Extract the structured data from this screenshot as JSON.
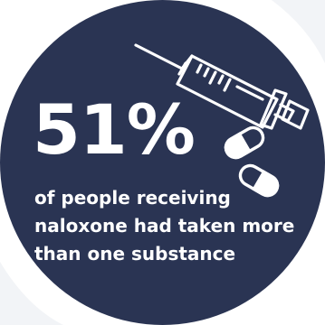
{
  "colors": {
    "circle": "#2a3453",
    "page_background": "#ffffff",
    "corner_tint": "#f2f4f7",
    "text": "#ffffff",
    "line_art": "#ffffff"
  },
  "icons": [
    "syringe-icon",
    "capsule-icon",
    "capsule-icon"
  ],
  "stat": {
    "value": "51%"
  },
  "caption": {
    "line1": "of people receiving",
    "line2": "naloxone had taken more",
    "line3": "than one substance"
  }
}
